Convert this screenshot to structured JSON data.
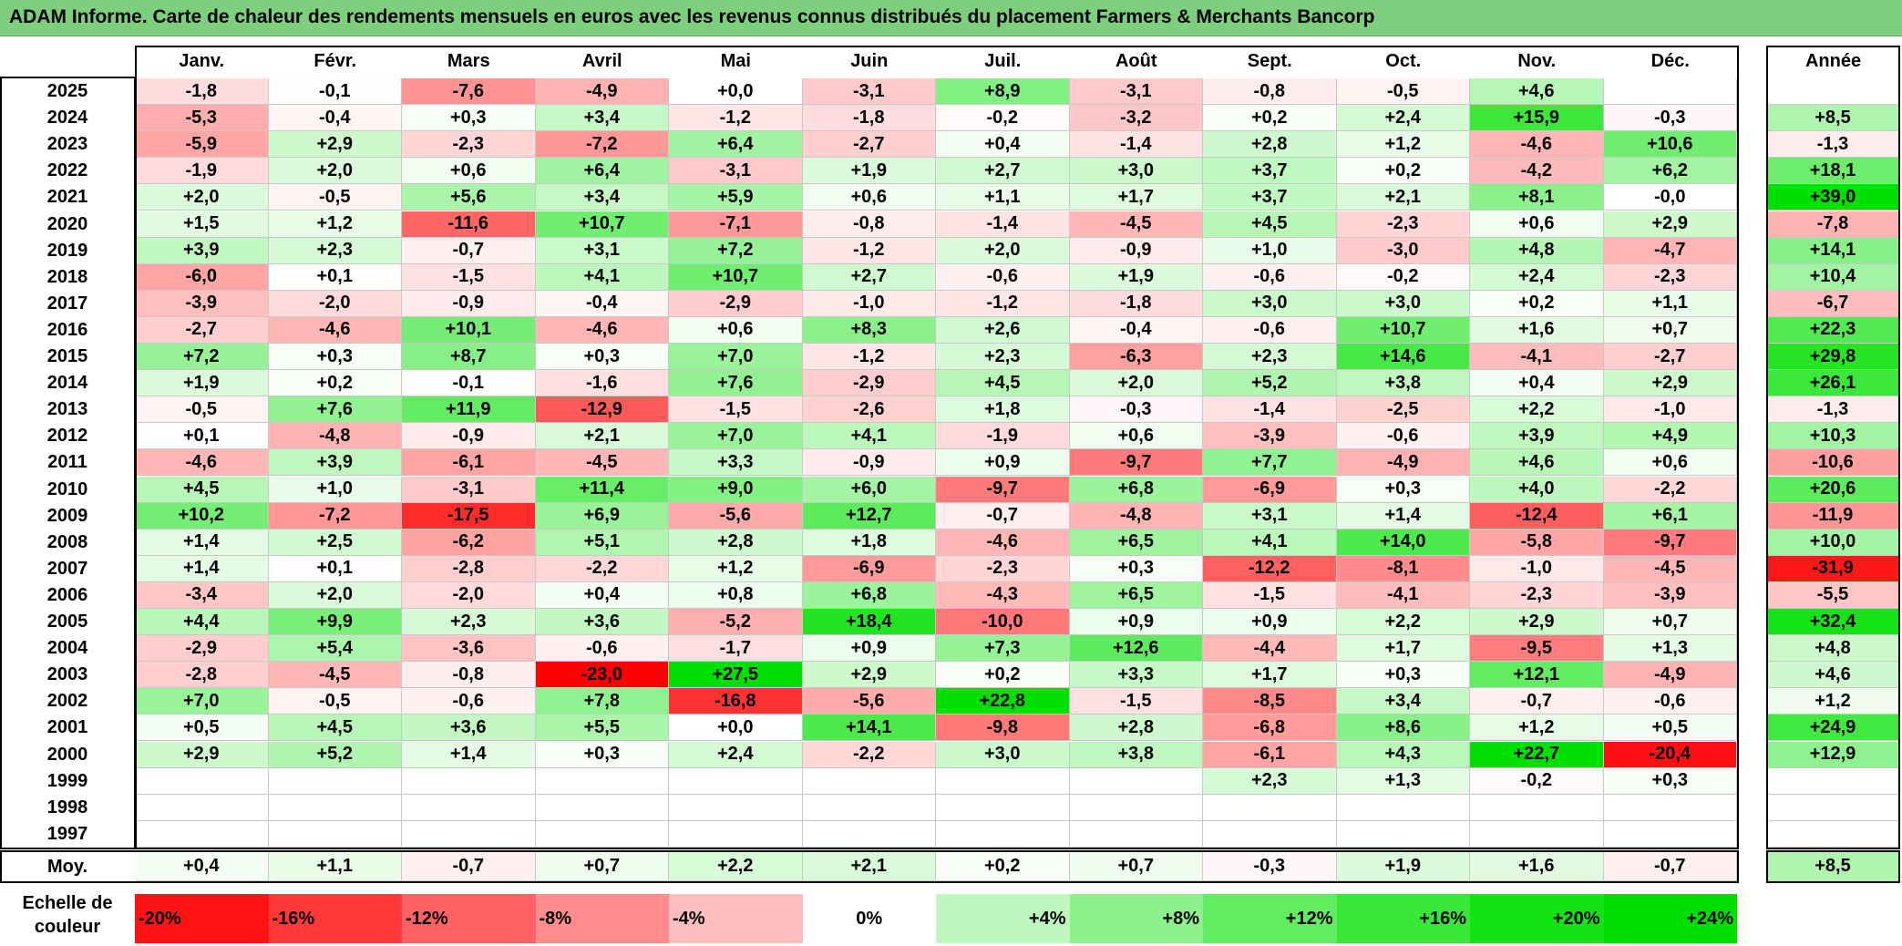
{
  "title": "ADAM Informe. Carte de chaleur des rendements mensuels en euros avec les revenus connus distribués du placement Farmers & Merchants Bancorp",
  "colors": {
    "title_bg": "#7dcf7d",
    "max_green": "#00e000",
    "max_red": "#ff0000",
    "neutral": "#ffffff"
  },
  "chart_data": {
    "type": "heatmap",
    "months": [
      "Janv.",
      "Févr.",
      "Mars",
      "Avril",
      "Mai",
      "Juin",
      "Juil.",
      "Août",
      "Sept.",
      "Oct.",
      "Nov.",
      "Déc."
    ],
    "annual_header": "Année",
    "rows": [
      {
        "year": "2025",
        "values": [
          "-1,8",
          "-0,1",
          "-7,6",
          "-4,9",
          "+0,0",
          "-3,1",
          "+8,9",
          "-3,1",
          "-0,8",
          "-0,5",
          "+4,6",
          ""
        ],
        "annual": ""
      },
      {
        "year": "2024",
        "values": [
          "-5,3",
          "-0,4",
          "+0,3",
          "+3,4",
          "-1,2",
          "-1,8",
          "-0,2",
          "-3,2",
          "+0,2",
          "+2,4",
          "+15,9",
          "-0,3"
        ],
        "annual": "+8,5"
      },
      {
        "year": "2023",
        "values": [
          "-5,9",
          "+2,9",
          "-2,3",
          "-7,2",
          "+6,4",
          "-2,7",
          "+0,4",
          "-1,4",
          "+2,8",
          "+1,2",
          "-4,6",
          "+10,6"
        ],
        "annual": "-1,3"
      },
      {
        "year": "2022",
        "values": [
          "-1,9",
          "+2,0",
          "+0,6",
          "+6,4",
          "-3,1",
          "+1,9",
          "+2,7",
          "+3,0",
          "+3,7",
          "+0,2",
          "-4,2",
          "+6,2"
        ],
        "annual": "+18,1"
      },
      {
        "year": "2021",
        "values": [
          "+2,0",
          "-0,5",
          "+5,6",
          "+3,4",
          "+5,9",
          "+0,6",
          "+1,1",
          "+1,7",
          "+3,7",
          "+2,1",
          "+8,1",
          "-0,0"
        ],
        "annual": "+39,0"
      },
      {
        "year": "2020",
        "values": [
          "+1,5",
          "+1,2",
          "-11,6",
          "+10,7",
          "-7,1",
          "-0,8",
          "-1,4",
          "-4,5",
          "+4,5",
          "-2,3",
          "+0,6",
          "+2,9"
        ],
        "annual": "-7,8"
      },
      {
        "year": "2019",
        "values": [
          "+3,9",
          "+2,3",
          "-0,7",
          "+3,1",
          "+7,2",
          "-1,2",
          "+2,0",
          "-0,9",
          "+1,0",
          "-3,0",
          "+4,8",
          "-4,7"
        ],
        "annual": "+14,1"
      },
      {
        "year": "2018",
        "values": [
          "-6,0",
          "+0,1",
          "-1,5",
          "+4,1",
          "+10,7",
          "+2,7",
          "-0,6",
          "+1,9",
          "-0,6",
          "-0,2",
          "+2,4",
          "-2,3"
        ],
        "annual": "+10,4"
      },
      {
        "year": "2017",
        "values": [
          "-3,9",
          "-2,0",
          "-0,9",
          "-0,4",
          "-2,9",
          "-1,0",
          "-1,2",
          "-1,8",
          "+3,0",
          "+3,0",
          "+0,2",
          "+1,1"
        ],
        "annual": "-6,7"
      },
      {
        "year": "2016",
        "values": [
          "-2,7",
          "-4,6",
          "+10,1",
          "-4,6",
          "+0,6",
          "+8,3",
          "+2,6",
          "-0,4",
          "-0,6",
          "+10,7",
          "+1,6",
          "+0,7"
        ],
        "annual": "+22,3"
      },
      {
        "year": "2015",
        "values": [
          "+7,2",
          "+0,3",
          "+8,7",
          "+0,3",
          "+7,0",
          "-1,2",
          "+2,3",
          "-6,3",
          "+2,3",
          "+14,6",
          "-4,1",
          "-2,7"
        ],
        "annual": "+29,8"
      },
      {
        "year": "2014",
        "values": [
          "+1,9",
          "+0,2",
          "-0,1",
          "-1,6",
          "+7,6",
          "-2,9",
          "+4,5",
          "+2,0",
          "+5,2",
          "+3,8",
          "+0,4",
          "+2,9"
        ],
        "annual": "+26,1"
      },
      {
        "year": "2013",
        "values": [
          "-0,5",
          "+7,6",
          "+11,9",
          "-12,9",
          "-1,5",
          "-2,6",
          "+1,8",
          "-0,3",
          "-1,4",
          "-2,5",
          "+2,2",
          "-1,0"
        ],
        "annual": "-1,3"
      },
      {
        "year": "2012",
        "values": [
          "+0,1",
          "-4,8",
          "-0,9",
          "+2,1",
          "+7,0",
          "+4,1",
          "-1,9",
          "+0,6",
          "-3,9",
          "-0,6",
          "+3,9",
          "+4,9"
        ],
        "annual": "+10,3"
      },
      {
        "year": "2011",
        "values": [
          "-4,6",
          "+3,9",
          "-6,1",
          "-4,5",
          "+3,3",
          "-0,9",
          "+0,9",
          "-9,7",
          "+7,7",
          "-4,9",
          "+4,6",
          "+0,6"
        ],
        "annual": "-10,6"
      },
      {
        "year": "2010",
        "values": [
          "+4,5",
          "+1,0",
          "-3,1",
          "+11,4",
          "+9,0",
          "+6,0",
          "-9,7",
          "+6,8",
          "-6,9",
          "+0,3",
          "+4,0",
          "-2,2"
        ],
        "annual": "+20,6"
      },
      {
        "year": "2009",
        "values": [
          "+10,2",
          "-7,2",
          "-17,5",
          "+6,9",
          "-5,6",
          "+12,7",
          "-0,7",
          "-4,8",
          "+3,1",
          "+1,4",
          "-12,4",
          "+6,1"
        ],
        "annual": "-11,9"
      },
      {
        "year": "2008",
        "values": [
          "+1,4",
          "+2,5",
          "-6,2",
          "+5,1",
          "+2,8",
          "+1,8",
          "-4,6",
          "+6,5",
          "+4,1",
          "+14,0",
          "-5,8",
          "-9,7"
        ],
        "annual": "+10,0"
      },
      {
        "year": "2007",
        "values": [
          "+1,4",
          "+0,1",
          "-2,8",
          "-2,2",
          "+1,2",
          "-6,9",
          "-2,3",
          "+0,3",
          "-12,2",
          "-8,1",
          "-1,0",
          "-4,5"
        ],
        "annual": "-31,9"
      },
      {
        "year": "2006",
        "values": [
          "-3,4",
          "+2,0",
          "-2,0",
          "+0,4",
          "+0,8",
          "+6,8",
          "-4,3",
          "+6,5",
          "-1,5",
          "-4,1",
          "-2,3",
          "-3,9"
        ],
        "annual": "-5,5"
      },
      {
        "year": "2005",
        "values": [
          "+4,4",
          "+9,9",
          "+2,3",
          "+3,6",
          "-5,2",
          "+18,4",
          "-10,0",
          "+0,9",
          "+0,9",
          "+2,2",
          "+2,9",
          "+0,7"
        ],
        "annual": "+32,4"
      },
      {
        "year": "2004",
        "values": [
          "-2,9",
          "+5,4",
          "-3,6",
          "-0,6",
          "-1,7",
          "+0,9",
          "+7,3",
          "+12,6",
          "-4,4",
          "+1,7",
          "-9,5",
          "+1,3"
        ],
        "annual": "+4,8"
      },
      {
        "year": "2003",
        "values": [
          "-2,8",
          "-4,5",
          "-0,8",
          "-23,0",
          "+27,5",
          "+2,9",
          "+0,2",
          "+3,3",
          "+1,7",
          "+0,3",
          "+12,1",
          "-4,9"
        ],
        "annual": "+4,6"
      },
      {
        "year": "2002",
        "values": [
          "+7,0",
          "-0,5",
          "-0,6",
          "+7,8",
          "-16,8",
          "-5,6",
          "+22,8",
          "-1,5",
          "-8,5",
          "+3,4",
          "-0,7",
          "-0,6"
        ],
        "annual": "+1,2"
      },
      {
        "year": "2001",
        "values": [
          "+0,5",
          "+4,5",
          "+3,6",
          "+5,5",
          "+0,0",
          "+14,1",
          "-9,8",
          "+2,8",
          "-6,8",
          "+8,6",
          "+1,2",
          "+0,5"
        ],
        "annual": "+24,9"
      },
      {
        "year": "2000",
        "values": [
          "+2,9",
          "+5,2",
          "+1,4",
          "+0,3",
          "+2,4",
          "-2,2",
          "+3,0",
          "+3,8",
          "-6,1",
          "+4,3",
          "+22,7",
          "-20,4"
        ],
        "annual": "+12,9"
      },
      {
        "year": "1999",
        "values": [
          "",
          "",
          "",
          "",
          "",
          "",
          "",
          "",
          "+2,3",
          "+1,3",
          "-0,2",
          "+0,3"
        ],
        "annual": ""
      },
      {
        "year": "1998",
        "values": [
          "",
          "",
          "",
          "",
          "",
          "",
          "",
          "",
          "",
          "",
          "",
          ""
        ],
        "annual": ""
      },
      {
        "year": "1997",
        "values": [
          "",
          "",
          "",
          "",
          "",
          "",
          "",
          "",
          "",
          "",
          "",
          ""
        ],
        "annual": ""
      }
    ],
    "average": {
      "label": "Moy.",
      "values": [
        "+0,4",
        "+1,1",
        "-0,7",
        "+0,7",
        "+2,2",
        "+2,1",
        "+0,2",
        "+0,7",
        "-0,3",
        "+1,9",
        "+1,6",
        "-0,7"
      ],
      "annual": "+8,5"
    },
    "color_scale": {
      "label": "Echelle de couleur",
      "stops": [
        "-20%",
        "-16%",
        "-12%",
        "-8%",
        "-4%",
        "0%",
        "+4%",
        "+8%",
        "+12%",
        "+16%",
        "+20%",
        "+24%"
      ],
      "stop_values": [
        -20,
        -16,
        -12,
        -8,
        -4,
        0,
        4,
        8,
        12,
        16,
        20,
        24
      ]
    }
  }
}
